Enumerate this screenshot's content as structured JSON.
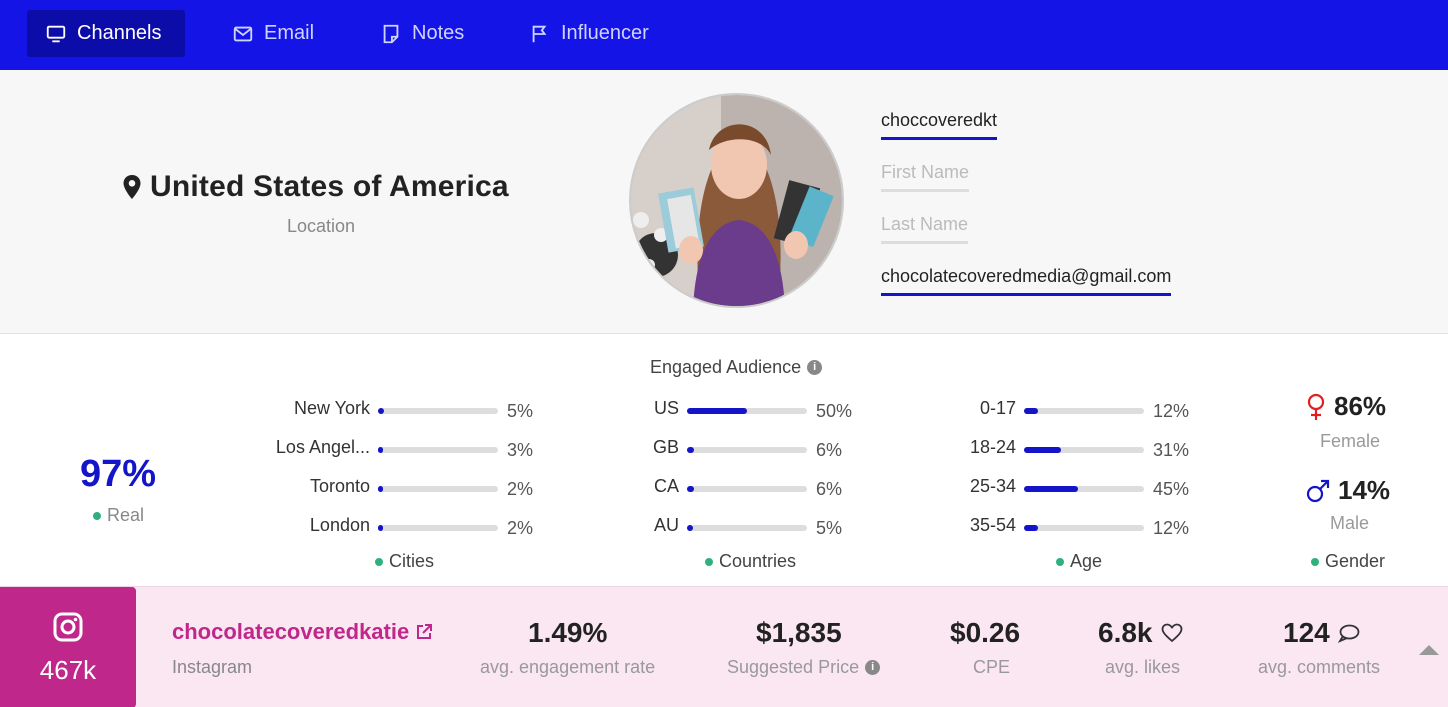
{
  "nav": {
    "tabs": [
      {
        "label": "Channels",
        "icon": "monitor-icon",
        "active": true
      },
      {
        "label": "Email",
        "icon": "mail-icon",
        "active": false
      },
      {
        "label": "Notes",
        "icon": "note-icon",
        "active": false
      },
      {
        "label": "Influencer",
        "icon": "flag-icon",
        "active": false
      }
    ],
    "colors": {
      "bar": "#1414e6",
      "active_tab": "#0c0ca8"
    }
  },
  "profile": {
    "location": "United States of America",
    "location_label": "Location",
    "username": "choccoveredkt",
    "first_name_placeholder": "First Name",
    "last_name_placeholder": "Last Name",
    "email": "chocolatecoveredmedia@gmail.com"
  },
  "audience": {
    "title": "Engaged Audience",
    "real": {
      "value": "97%",
      "label": "Real"
    },
    "cities": {
      "label": "Cities",
      "items": [
        {
          "name": "New York",
          "pct": "5%",
          "value": 5
        },
        {
          "name": "Los Angel...",
          "pct": "3%",
          "value": 3
        },
        {
          "name": "Toronto",
          "pct": "2%",
          "value": 2
        },
        {
          "name": "London",
          "pct": "2%",
          "value": 2
        }
      ]
    },
    "countries": {
      "label": "Countries",
      "items": [
        {
          "name": "US",
          "pct": "50%",
          "value": 50
        },
        {
          "name": "GB",
          "pct": "6%",
          "value": 6
        },
        {
          "name": "CA",
          "pct": "6%",
          "value": 6
        },
        {
          "name": "AU",
          "pct": "5%",
          "value": 5
        }
      ]
    },
    "age": {
      "label": "Age",
      "items": [
        {
          "name": "0-17",
          "pct": "12%",
          "value": 12
        },
        {
          "name": "18-24",
          "pct": "31%",
          "value": 31
        },
        {
          "name": "25-34",
          "pct": "45%",
          "value": 45
        },
        {
          "name": "35-54",
          "pct": "12%",
          "value": 12
        }
      ]
    },
    "gender": {
      "label": "Gender",
      "female": {
        "value": "86%",
        "label": "Female",
        "color": "#e02020"
      },
      "male": {
        "value": "14%",
        "label": "Male",
        "color": "#1414c8"
      }
    },
    "colors": {
      "bar_fill": "#1414c8",
      "bar_track": "#dddddd",
      "dot": "#2fb07f"
    }
  },
  "channel": {
    "followers": "467k",
    "handle": "chocolatecoveredkatie",
    "platform": "Instagram",
    "stats": [
      {
        "value": "1.49%",
        "label": "avg. engagement rate"
      },
      {
        "value": "$1,835",
        "label": "Suggested Price"
      },
      {
        "value": "$0.26",
        "label": "CPE"
      },
      {
        "value": "6.8k",
        "label": "avg. likes"
      },
      {
        "value": "124",
        "label": "avg. comments"
      }
    ],
    "colors": {
      "brand": "#c0278b",
      "background": "#fbe7f2"
    }
  }
}
